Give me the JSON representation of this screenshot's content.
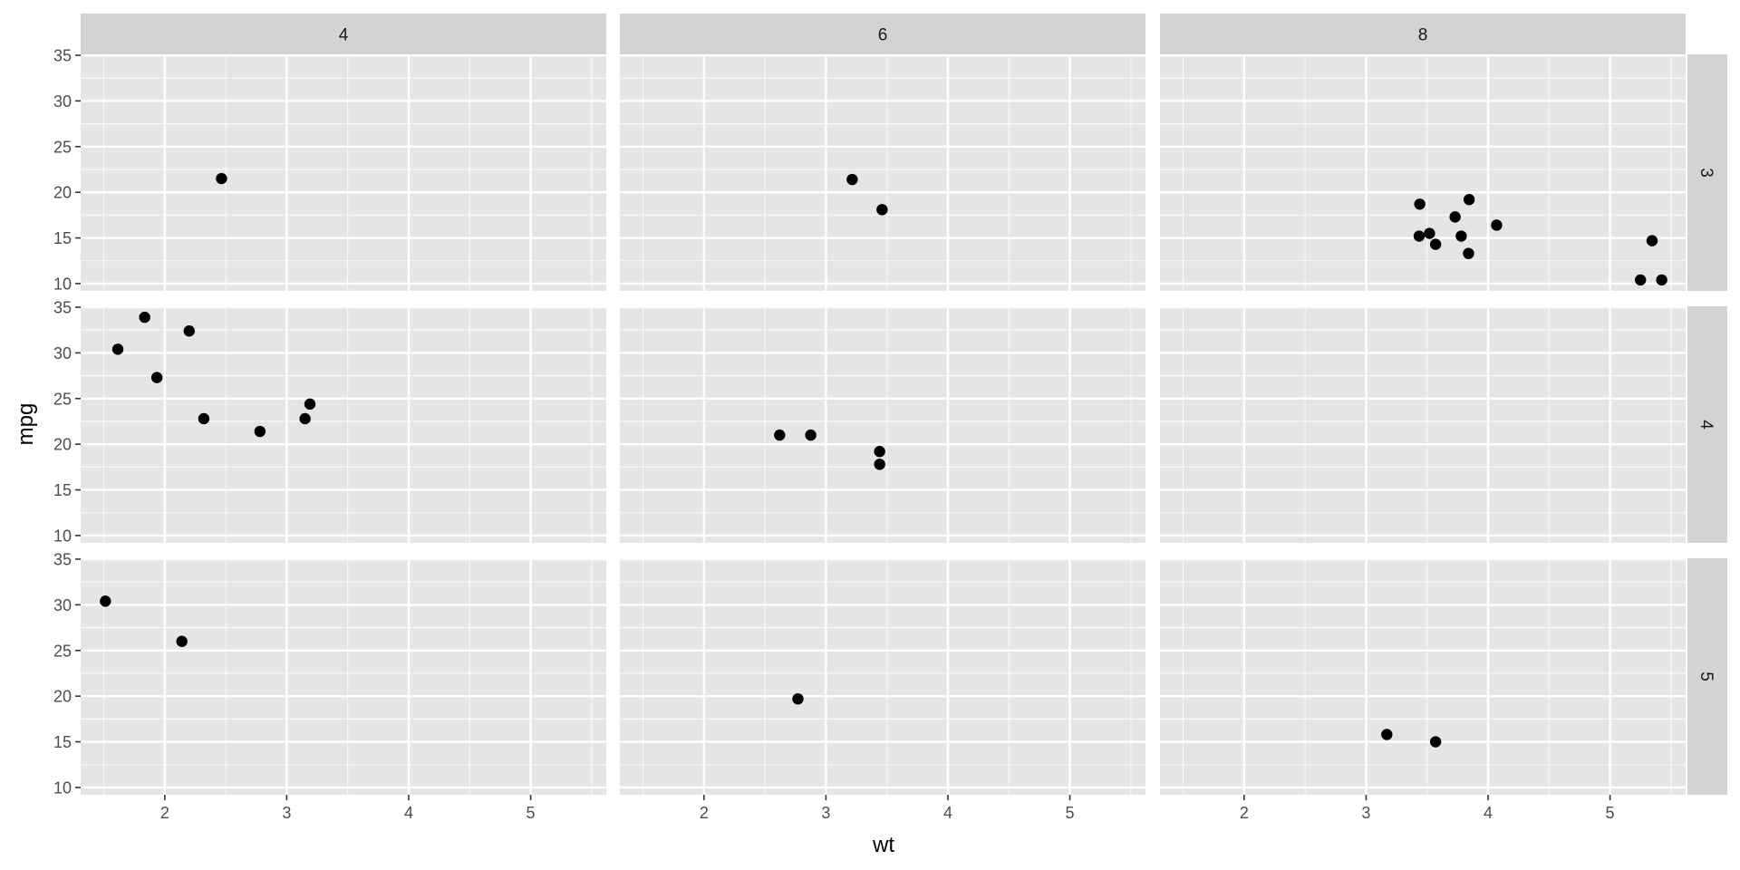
{
  "chart_data": {
    "type": "scatter",
    "facet": {
      "cols": [
        "4",
        "6",
        "8"
      ],
      "rows": [
        "3",
        "4",
        "5"
      ]
    },
    "xlabel": "wt",
    "ylabel": "mpg",
    "xlim": [
      1.31,
      5.62
    ],
    "ylim": [
      9.2,
      35.1
    ],
    "x_ticks": [
      2,
      3,
      4,
      5
    ],
    "y_ticks": [
      10,
      15,
      20,
      25,
      30,
      35
    ],
    "grid": true,
    "legend": "none",
    "panels": [
      {
        "col": "4",
        "row": "3",
        "points": [
          {
            "x": 2.465,
            "y": 21.5
          }
        ]
      },
      {
        "col": "6",
        "row": "3",
        "points": [
          {
            "x": 3.215,
            "y": 21.4
          },
          {
            "x": 3.46,
            "y": 18.1
          }
        ]
      },
      {
        "col": "8",
        "row": "3",
        "points": [
          {
            "x": 3.44,
            "y": 18.7
          },
          {
            "x": 3.57,
            "y": 14.3
          },
          {
            "x": 4.07,
            "y": 16.4
          },
          {
            "x": 3.73,
            "y": 17.3
          },
          {
            "x": 3.78,
            "y": 15.2
          },
          {
            "x": 5.25,
            "y": 10.4
          },
          {
            "x": 5.424,
            "y": 10.4
          },
          {
            "x": 5.345,
            "y": 14.7
          },
          {
            "x": 3.52,
            "y": 15.5
          },
          {
            "x": 3.435,
            "y": 15.2
          },
          {
            "x": 3.84,
            "y": 13.3
          },
          {
            "x": 3.845,
            "y": 19.2
          }
        ]
      },
      {
        "col": "4",
        "row": "4",
        "points": [
          {
            "x": 2.32,
            "y": 22.8
          },
          {
            "x": 3.19,
            "y": 24.4
          },
          {
            "x": 3.15,
            "y": 22.8
          },
          {
            "x": 2.2,
            "y": 32.4
          },
          {
            "x": 1.615,
            "y": 30.4
          },
          {
            "x": 1.835,
            "y": 33.9
          },
          {
            "x": 1.935,
            "y": 27.3
          },
          {
            "x": 2.78,
            "y": 21.4
          }
        ]
      },
      {
        "col": "6",
        "row": "4",
        "points": [
          {
            "x": 2.62,
            "y": 21.0
          },
          {
            "x": 2.875,
            "y": 21.0
          },
          {
            "x": 3.44,
            "y": 19.2
          },
          {
            "x": 3.44,
            "y": 17.8
          }
        ]
      },
      {
        "col": "8",
        "row": "4",
        "points": []
      },
      {
        "col": "4",
        "row": "5",
        "points": [
          {
            "x": 2.14,
            "y": 26.0
          },
          {
            "x": 1.513,
            "y": 30.4
          }
        ]
      },
      {
        "col": "6",
        "row": "5",
        "points": [
          {
            "x": 2.77,
            "y": 19.7
          }
        ]
      },
      {
        "col": "8",
        "row": "5",
        "points": [
          {
            "x": 3.17,
            "y": 15.8
          },
          {
            "x": 3.57,
            "y": 15.0
          }
        ]
      }
    ],
    "colors": {
      "panel_background": "#e5e5e5",
      "grid_major": "#ffffff",
      "strip_background": "#d3d3d3",
      "point": "#000000",
      "tick_label": "#4d4d4d"
    }
  }
}
